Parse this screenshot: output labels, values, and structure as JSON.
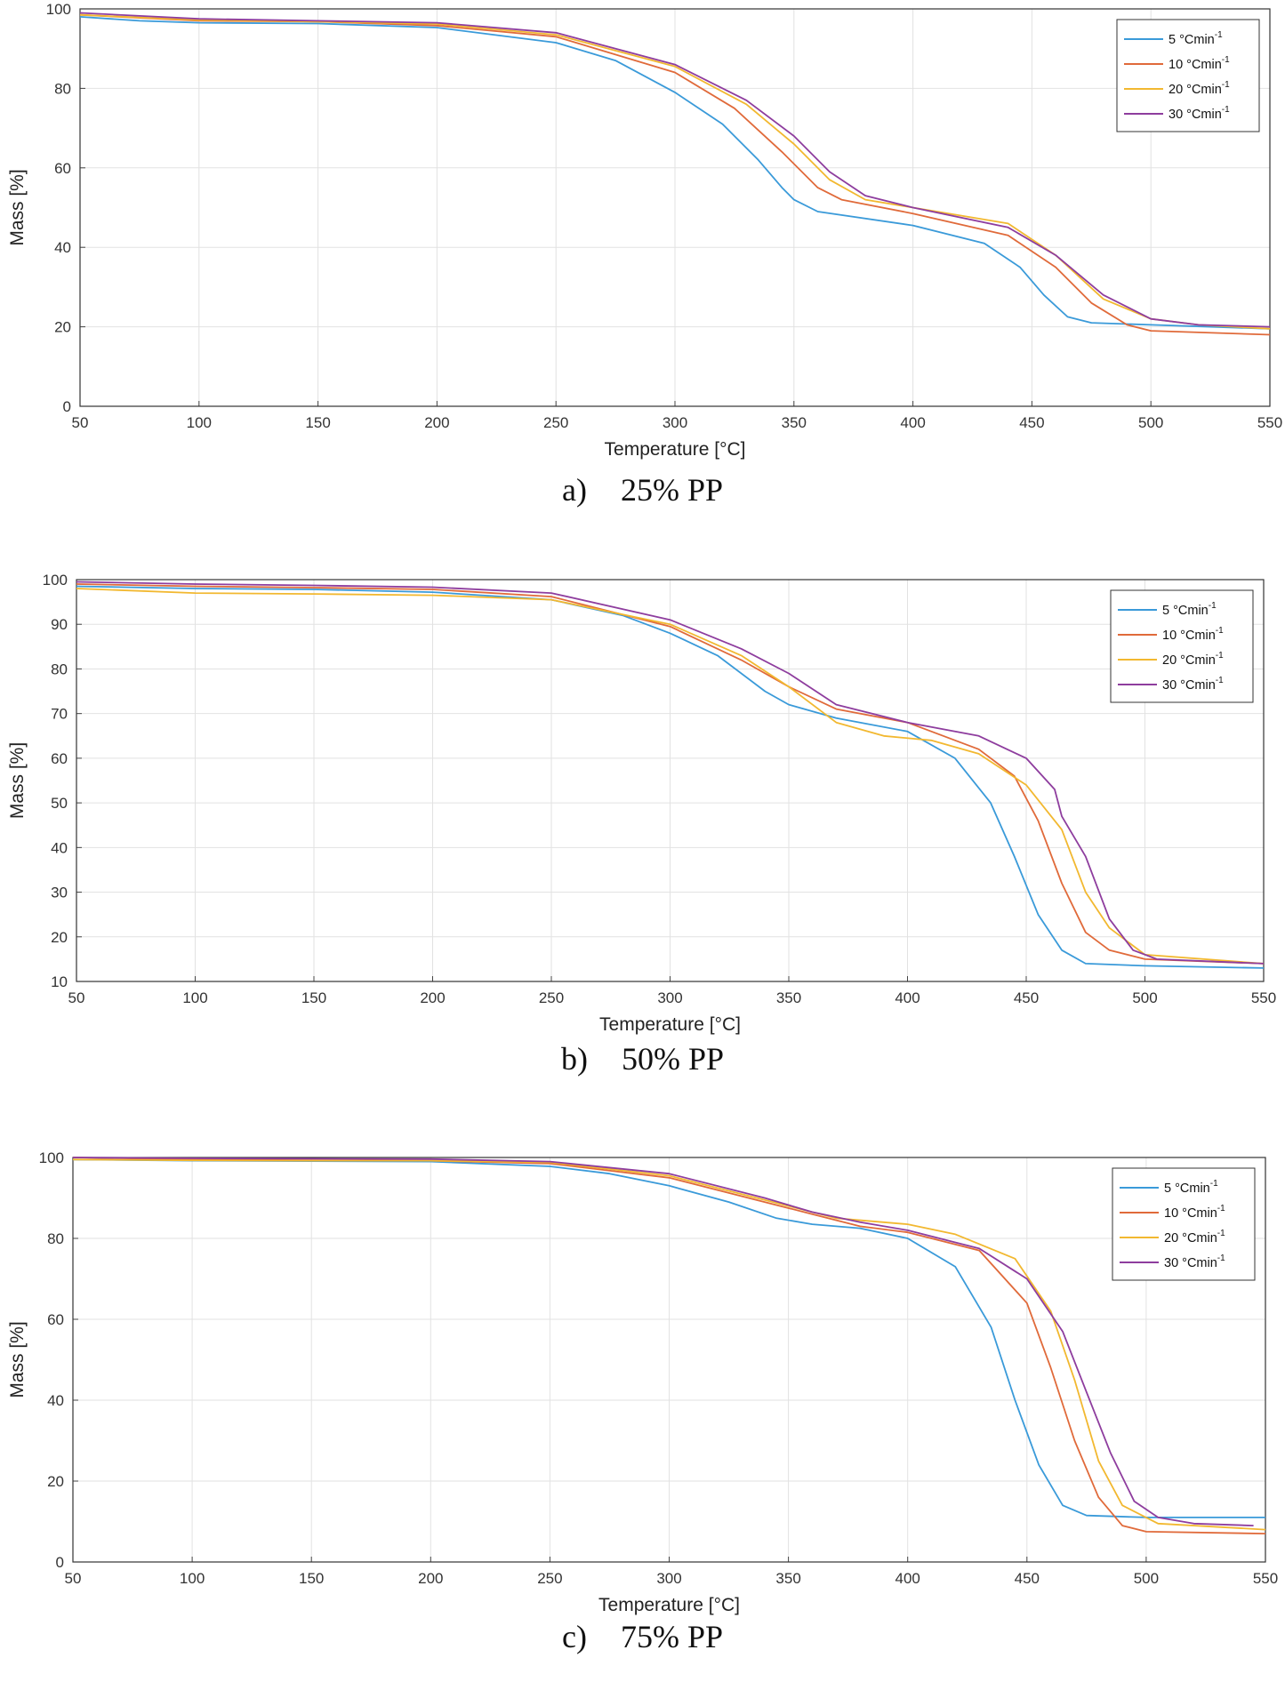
{
  "chart_data": [
    {
      "type": "line",
      "panel_label": "a)",
      "caption": "25% PP",
      "xlabel": "Temperature [°C]",
      "ylabel": "Mass [%]",
      "xlim": [
        50,
        550
      ],
      "ylim": [
        0,
        100
      ],
      "xticks": [
        50,
        100,
        150,
        200,
        250,
        300,
        350,
        400,
        450,
        500,
        550
      ],
      "yticks": [
        0,
        20,
        40,
        60,
        80,
        100
      ],
      "grid": true,
      "legend_position": "top-right",
      "series": [
        {
          "name": "5 °Cmin",
          "sup": "-1",
          "color": "#3a9ad9",
          "points": [
            [
              50,
              98
            ],
            [
              75,
              97
            ],
            [
              100,
              96.5
            ],
            [
              150,
              96.3
            ],
            [
              200,
              95.3
            ],
            [
              250,
              91.5
            ],
            [
              275,
              87
            ],
            [
              300,
              79
            ],
            [
              320,
              71
            ],
            [
              335,
              62
            ],
            [
              345,
              55
            ],
            [
              350,
              52
            ],
            [
              360,
              49
            ],
            [
              400,
              45.5
            ],
            [
              430,
              41
            ],
            [
              445,
              35
            ],
            [
              455,
              28
            ],
            [
              465,
              22.5
            ],
            [
              475,
              21
            ],
            [
              500,
              20.5
            ],
            [
              550,
              19.5
            ]
          ]
        },
        {
          "name": "10 °Cmin",
          "sup": "-1",
          "color": "#e06a3a",
          "points": [
            [
              50,
              98.5
            ],
            [
              100,
              97
            ],
            [
              150,
              96.8
            ],
            [
              200,
              95.8
            ],
            [
              250,
              93
            ],
            [
              300,
              84
            ],
            [
              325,
              75
            ],
            [
              345,
              64
            ],
            [
              360,
              55
            ],
            [
              370,
              52
            ],
            [
              400,
              48.5
            ],
            [
              440,
              43
            ],
            [
              460,
              35
            ],
            [
              475,
              26
            ],
            [
              490,
              20.5
            ],
            [
              500,
              19
            ],
            [
              550,
              18
            ]
          ]
        },
        {
          "name": "20 °Cmin",
          "sup": "-1",
          "color": "#f2b830",
          "points": [
            [
              50,
              98.5
            ],
            [
              100,
              97.2
            ],
            [
              150,
              96.8
            ],
            [
              200,
              96.2
            ],
            [
              250,
              93.5
            ],
            [
              300,
              85.5
            ],
            [
              330,
              76
            ],
            [
              350,
              66
            ],
            [
              365,
              57
            ],
            [
              380,
              52
            ],
            [
              400,
              50
            ],
            [
              440,
              46
            ],
            [
              460,
              38
            ],
            [
              480,
              27
            ],
            [
              500,
              22
            ],
            [
              520,
              20.5
            ],
            [
              550,
              19.5
            ]
          ]
        },
        {
          "name": "30 °Cmin",
          "sup": "-1",
          "color": "#8e3d9e",
          "points": [
            [
              50,
              99
            ],
            [
              100,
              97.5
            ],
            [
              150,
              97
            ],
            [
              200,
              96.5
            ],
            [
              250,
              94
            ],
            [
              300,
              86
            ],
            [
              330,
              77
            ],
            [
              350,
              68
            ],
            [
              365,
              59
            ],
            [
              380,
              53
            ],
            [
              400,
              50
            ],
            [
              440,
              45
            ],
            [
              460,
              38
            ],
            [
              480,
              28
            ],
            [
              500,
              22
            ],
            [
              520,
              20.5
            ],
            [
              550,
              20
            ]
          ]
        }
      ]
    },
    {
      "type": "line",
      "panel_label": "b)",
      "caption": "50% PP",
      "xlabel": "Temperature [°C]",
      "ylabel": "Mass [%]",
      "xlim": [
        50,
        550
      ],
      "ylim": [
        10,
        100
      ],
      "xticks": [
        50,
        100,
        150,
        200,
        250,
        300,
        350,
        400,
        450,
        500,
        550
      ],
      "yticks": [
        10,
        20,
        30,
        40,
        50,
        60,
        70,
        80,
        90,
        100
      ],
      "grid": true,
      "legend_position": "top-right",
      "series": [
        {
          "name": "5 °Cmin",
          "sup": "-1",
          "color": "#3a9ad9",
          "points": [
            [
              50,
              98.5
            ],
            [
              100,
              98
            ],
            [
              150,
              97.8
            ],
            [
              200,
              97.2
            ],
            [
              250,
              95.5
            ],
            [
              280,
              92
            ],
            [
              300,
              88
            ],
            [
              320,
              83
            ],
            [
              340,
              75
            ],
            [
              350,
              72
            ],
            [
              370,
              69
            ],
            [
              400,
              66
            ],
            [
              420,
              60
            ],
            [
              435,
              50
            ],
            [
              445,
              38
            ],
            [
              455,
              25
            ],
            [
              465,
              17
            ],
            [
              475,
              14
            ],
            [
              500,
              13.5
            ],
            [
              550,
              13
            ]
          ]
        },
        {
          "name": "10 °Cmin",
          "sup": "-1",
          "color": "#e06a3a",
          "points": [
            [
              50,
              99
            ],
            [
              100,
              98.5
            ],
            [
              150,
              98.2
            ],
            [
              200,
              97.8
            ],
            [
              250,
              96.2
            ],
            [
              300,
              89.5
            ],
            [
              330,
              82
            ],
            [
              350,
              76
            ],
            [
              370,
              71
            ],
            [
              400,
              68
            ],
            [
              430,
              62
            ],
            [
              445,
              56
            ],
            [
              455,
              46
            ],
            [
              465,
              32
            ],
            [
              475,
              21
            ],
            [
              485,
              17
            ],
            [
              500,
              15
            ],
            [
              550,
              14
            ]
          ]
        },
        {
          "name": "20 °Cmin",
          "sup": "-1",
          "color": "#f2b830",
          "points": [
            [
              50,
              98
            ],
            [
              100,
              97
            ],
            [
              150,
              96.8
            ],
            [
              200,
              96.5
            ],
            [
              250,
              95.5
            ],
            [
              300,
              90
            ],
            [
              330,
              83
            ],
            [
              350,
              76
            ],
            [
              370,
              68
            ],
            [
              390,
              65
            ],
            [
              410,
              64
            ],
            [
              430,
              61
            ],
            [
              450,
              54
            ],
            [
              465,
              44
            ],
            [
              475,
              30
            ],
            [
              485,
              22
            ],
            [
              500,
              16
            ],
            [
              550,
              14
            ]
          ]
        },
        {
          "name": "30 °Cmin",
          "sup": "-1",
          "color": "#8e3d9e",
          "points": [
            [
              50,
              99.5
            ],
            [
              100,
              99
            ],
            [
              150,
              98.7
            ],
            [
              200,
              98.3
            ],
            [
              250,
              97
            ],
            [
              300,
              91
            ],
            [
              330,
              84.5
            ],
            [
              350,
              79
            ],
            [
              370,
              72
            ],
            [
              400,
              68
            ],
            [
              430,
              65
            ],
            [
              450,
              60
            ],
            [
              462,
              53
            ],
            [
              465,
              47
            ],
            [
              475,
              38
            ],
            [
              485,
              24
            ],
            [
              495,
              17
            ],
            [
              505,
              15
            ],
            [
              550,
              14
            ]
          ]
        }
      ]
    },
    {
      "type": "line",
      "panel_label": "c)",
      "caption": "75% PP",
      "xlabel": "Temperature [°C]",
      "ylabel": "Mass [%]",
      "xlim": [
        50,
        550
      ],
      "ylim": [
        0,
        100
      ],
      "xticks": [
        50,
        100,
        150,
        200,
        250,
        300,
        350,
        400,
        450,
        500,
        550
      ],
      "yticks": [
        0,
        20,
        40,
        60,
        80,
        100
      ],
      "grid": true,
      "legend_position": "top-right",
      "series": [
        {
          "name": "5 °Cmin",
          "sup": "-1",
          "color": "#3a9ad9",
          "points": [
            [
              50,
              99.5
            ],
            [
              100,
              99.2
            ],
            [
              150,
              99.1
            ],
            [
              200,
              99
            ],
            [
              250,
              97.8
            ],
            [
              275,
              96
            ],
            [
              300,
              93
            ],
            [
              325,
              89
            ],
            [
              345,
              85
            ],
            [
              360,
              83.5
            ],
            [
              380,
              82.5
            ],
            [
              400,
              80
            ],
            [
              420,
              73
            ],
            [
              435,
              58
            ],
            [
              445,
              40
            ],
            [
              455,
              24
            ],
            [
              465,
              14
            ],
            [
              475,
              11.5
            ],
            [
              500,
              11
            ],
            [
              550,
              11
            ]
          ]
        },
        {
          "name": "10 °Cmin",
          "sup": "-1",
          "color": "#e06a3a",
          "points": [
            [
              50,
              100
            ],
            [
              100,
              99.5
            ],
            [
              150,
              99.3
            ],
            [
              200,
              99.2
            ],
            [
              250,
              98.5
            ],
            [
              300,
              95
            ],
            [
              340,
              89
            ],
            [
              360,
              86
            ],
            [
              380,
              83
            ],
            [
              400,
              81.5
            ],
            [
              430,
              77
            ],
            [
              450,
              64
            ],
            [
              460,
              48
            ],
            [
              470,
              30
            ],
            [
              480,
              16
            ],
            [
              490,
              9
            ],
            [
              500,
              7.5
            ],
            [
              550,
              7
            ]
          ]
        },
        {
          "name": "20 °Cmin",
          "sup": "-1",
          "color": "#f2b830",
          "points": [
            [
              50,
              99.5
            ],
            [
              100,
              99.3
            ],
            [
              150,
              99.2
            ],
            [
              200,
              99.2
            ],
            [
              250,
              98.8
            ],
            [
              300,
              95.5
            ],
            [
              340,
              89.5
            ],
            [
              370,
              85
            ],
            [
              400,
              83.5
            ],
            [
              420,
              81
            ],
            [
              445,
              75
            ],
            [
              460,
              62
            ],
            [
              470,
              45
            ],
            [
              480,
              25
            ],
            [
              490,
              14
            ],
            [
              505,
              9.5
            ],
            [
              550,
              8
            ]
          ]
        },
        {
          "name": "30 °Cmin",
          "sup": "-1",
          "color": "#8e3d9e",
          "points": [
            [
              50,
              100
            ],
            [
              100,
              99.8
            ],
            [
              150,
              99.7
            ],
            [
              200,
              99.6
            ],
            [
              250,
              99
            ],
            [
              300,
              96
            ],
            [
              340,
              90
            ],
            [
              360,
              86.5
            ],
            [
              380,
              84
            ],
            [
              400,
              82
            ],
            [
              430,
              77.5
            ],
            [
              450,
              70
            ],
            [
              465,
              57
            ],
            [
              475,
              42
            ],
            [
              485,
              27
            ],
            [
              495,
              15
            ],
            [
              505,
              11
            ],
            [
              520,
              9.5
            ],
            [
              545,
              9
            ]
          ]
        }
      ]
    }
  ]
}
